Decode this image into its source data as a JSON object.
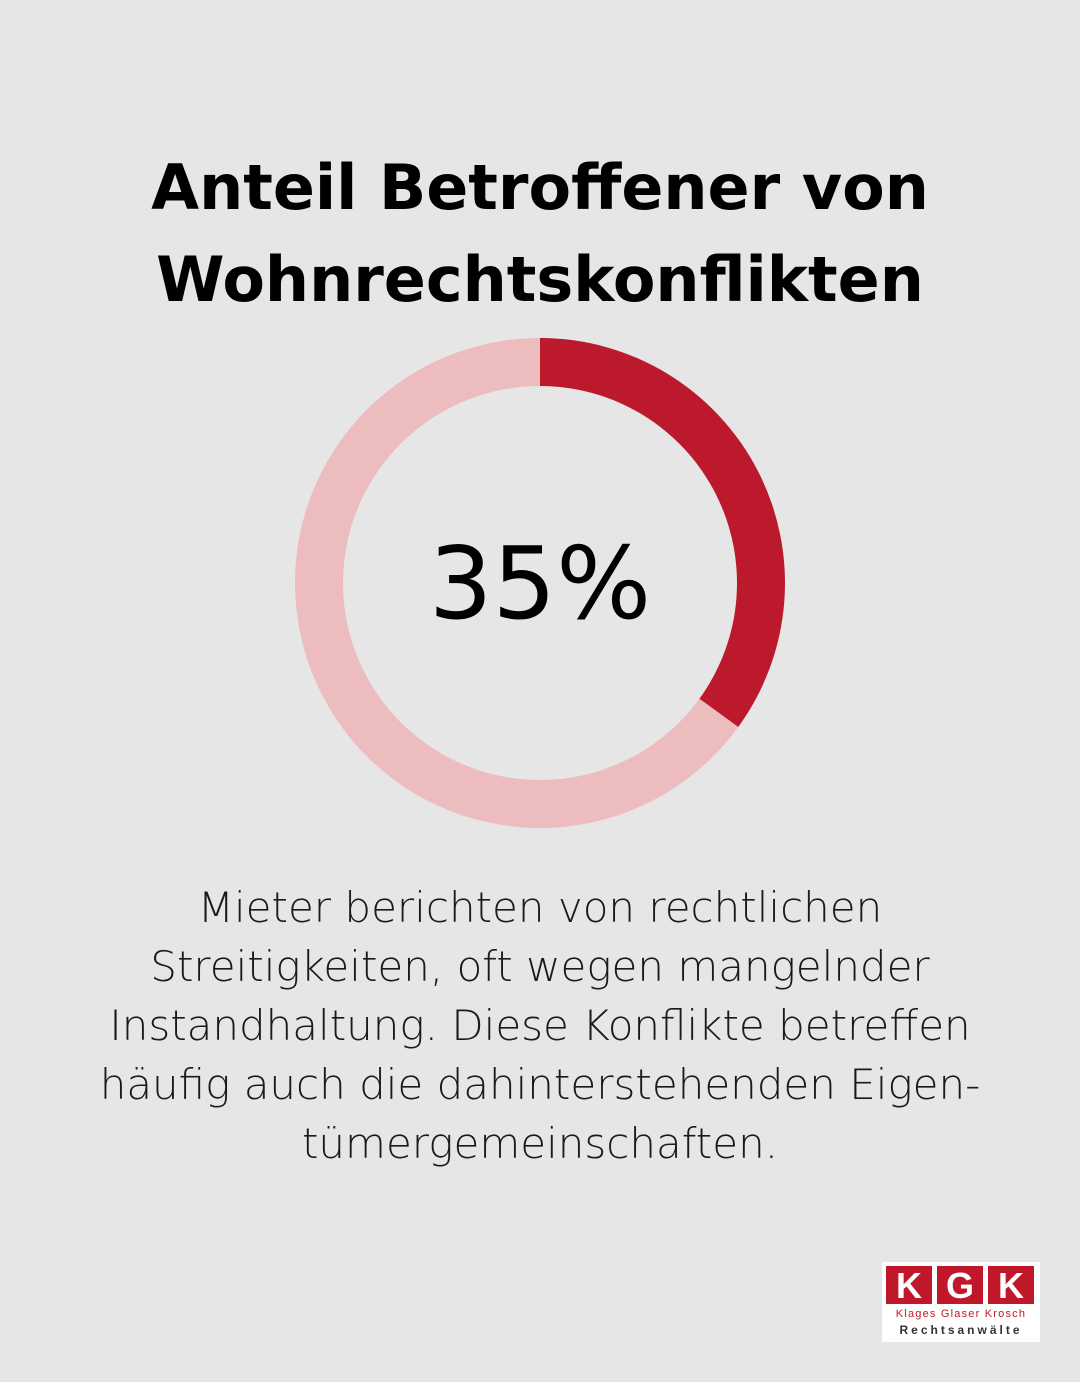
{
  "title": {
    "line1": "Anteil Betroffener von",
    "line2": "Wohnrechtskonflikten"
  },
  "chart_data": {
    "type": "pie",
    "value_percent": 35,
    "center_label": "35%",
    "slices": [
      {
        "value": 35,
        "color": "#bc1a2c"
      },
      {
        "value": 65,
        "color": "#ecbcbf"
      }
    ]
  },
  "description": {
    "line1": "Mieter berichten von rechtlichen",
    "line2": "Streitigkeiten, oft wegen mangelnder",
    "line3": "Instandhaltung. Diese Konflikte betreffen",
    "line4": "häufig auch die dahinterstehenden Eigen-",
    "line5": "tümergemeinschaften."
  },
  "logo": {
    "letters": [
      "K",
      "G",
      "K"
    ],
    "firm": "Klages Glaser Krosch",
    "subtitle": "Rechtsanwälte",
    "color": "#c0182a"
  }
}
